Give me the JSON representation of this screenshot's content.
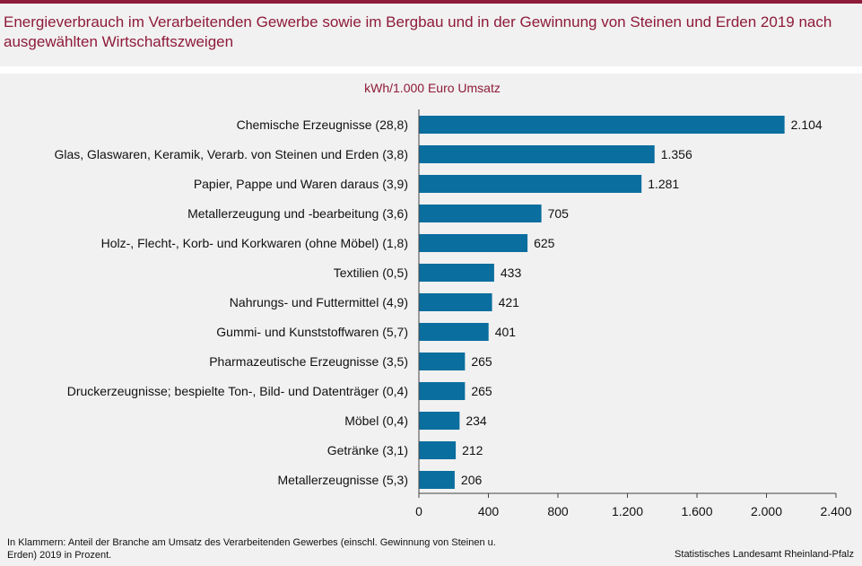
{
  "header": {
    "title": "Energieverbrauch im Verarbeitenden Gewerbe sowie im Bergbau und in der Gewinnung von Steinen und Erden 2019 nach ausgewählten Wirtschaftszweigen"
  },
  "chart_data": {
    "type": "bar",
    "orientation": "horizontal",
    "unit_label": "kWh/1.000  Euro Umsatz",
    "categories": [
      "Chemische Erzeugnisse (28,8)",
      "Glas, Glaswaren, Keramik, Verarb. von Steinen und Erden (3,8)",
      "Papier, Pappe und Waren daraus (3,9)",
      "Metallerzeugung und -bearbeitung (3,6)",
      "Holz-, Flecht-, Korb- und Korkwaren (ohne Möbel) (1,8)",
      "Textilien (0,5)",
      "Nahrungs- und Futtermittel (4,9)",
      "Gummi- und Kunststoffwaren (5,7)",
      "Pharmazeutische Erzeugnisse (3,5)",
      "Druckerzeugnisse; bespielte Ton-, Bild- und Datenträger (0,4)",
      "Möbel (0,4)",
      "Getränke (3,1)",
      "Metallerzeugnisse (5,3)"
    ],
    "values": [
      2104,
      1356,
      1281,
      705,
      625,
      433,
      421,
      401,
      265,
      265,
      234,
      212,
      206
    ],
    "value_labels": [
      "2.104",
      "1.356",
      "1.281",
      "705",
      "625",
      "433",
      "421",
      "401",
      "265",
      "265",
      "234",
      "212",
      "206"
    ],
    "xlim": [
      0,
      2400
    ],
    "x_ticks": [
      0,
      400,
      800,
      1200,
      1600,
      2000,
      2400
    ],
    "x_tick_labels": [
      "0",
      "400",
      "800",
      "1.200",
      "1.600",
      "2.000",
      "2.400"
    ],
    "bar_color": "#0a6e9f",
    "grid": false,
    "legend": "none"
  },
  "footer": {
    "note": "In Klammern: Anteil der Branche am Umsatz des Verarbeitenden  Gewerbes (einschl. Gewinnung von Steinen u. Erden) 2019 in Prozent.",
    "source": "Statistisches Landesamt Rheinland-Pfalz"
  }
}
